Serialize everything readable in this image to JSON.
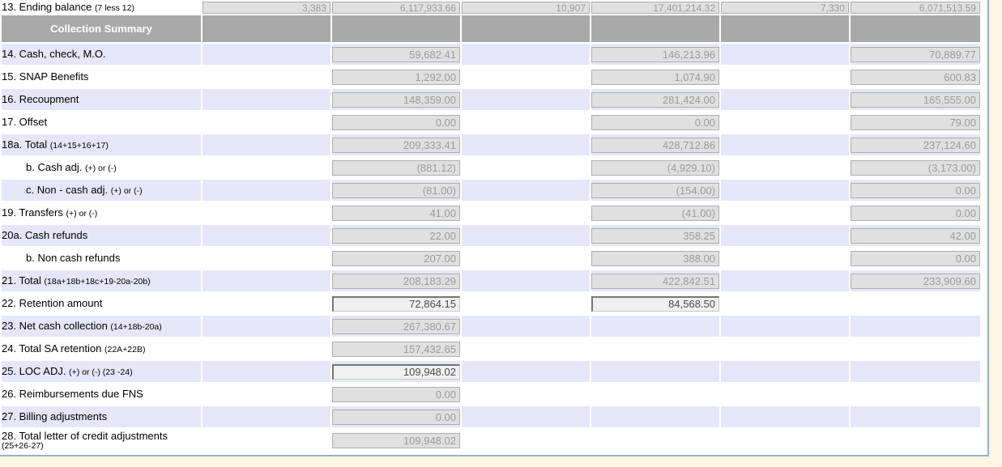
{
  "colors": {
    "page_background": "#fdf6e3",
    "panel_background": "#ffffff",
    "panel_border": "#8fb3cc",
    "row_highlight": "#e6e6fa",
    "header_background": "#a9a9a9",
    "header_text": "#ffffff",
    "readonly_field_background": "#e0e0e0",
    "readonly_field_text": "#9b9b9b",
    "editable_field_background": "#f0f0f0",
    "editable_field_text": "#4d4d4d"
  },
  "table": {
    "section_header": "Collection Summary",
    "top_row": {
      "id": "13",
      "label": "13. Ending balance",
      "note": "(7 less 12)",
      "cells": [
        {
          "v": "3,383",
          "editable": false
        },
        {
          "v": "6,117,933.66",
          "editable": false
        },
        {
          "v": "10,907",
          "editable": false
        },
        {
          "v": "17,401,214.32",
          "editable": false
        },
        {
          "v": "7,330",
          "editable": false
        },
        {
          "v": "6,071,513.59",
          "editable": false
        }
      ]
    },
    "rows": [
      {
        "id": "14",
        "label": "14. Cash, check, M.O.",
        "note": "",
        "indent": false,
        "shade": "alt",
        "cells": [
          null,
          {
            "v": "59,682.41",
            "editable": false
          },
          null,
          {
            "v": "146,213.96",
            "editable": false
          },
          null,
          {
            "v": "70,889.77",
            "editable": false
          }
        ]
      },
      {
        "id": "15",
        "label": "15. SNAP Benefits",
        "note": "",
        "indent": false,
        "shade": "plain",
        "cells": [
          null,
          {
            "v": "1,292.00",
            "editable": false
          },
          null,
          {
            "v": "1,074.90",
            "editable": false
          },
          null,
          {
            "v": "600.83",
            "editable": false
          }
        ]
      },
      {
        "id": "16",
        "label": "16. Recoupment",
        "note": "",
        "indent": false,
        "shade": "alt",
        "cells": [
          null,
          {
            "v": "148,359.00",
            "editable": false
          },
          null,
          {
            "v": "281,424.00",
            "editable": false
          },
          null,
          {
            "v": "165,555.00",
            "editable": false
          }
        ]
      },
      {
        "id": "17",
        "label": "17. Offset",
        "note": "",
        "indent": false,
        "shade": "plain",
        "cells": [
          null,
          {
            "v": "0.00",
            "editable": false
          },
          null,
          {
            "v": "0.00",
            "editable": false
          },
          null,
          {
            "v": "79.00",
            "editable": false
          }
        ]
      },
      {
        "id": "18a",
        "label": "18a. Total",
        "note": "(14+15+16+17)",
        "indent": false,
        "shade": "alt",
        "cells": [
          null,
          {
            "v": "209,333.41",
            "editable": false
          },
          null,
          {
            "v": "428,712.86",
            "editable": false
          },
          null,
          {
            "v": "237,124.60",
            "editable": false
          }
        ]
      },
      {
        "id": "18b",
        "label": "b. Cash adj.",
        "note": "(+) or (-)",
        "indent": true,
        "shade": "plain",
        "cells": [
          null,
          {
            "v": "(881.12)",
            "editable": false
          },
          null,
          {
            "v": "(4,929.10)",
            "editable": false
          },
          null,
          {
            "v": "(3,173.00)",
            "editable": false
          }
        ]
      },
      {
        "id": "18c",
        "label": "c. Non - cash adj.",
        "note": "(+) or (-)",
        "indent": true,
        "shade": "alt",
        "cells": [
          null,
          {
            "v": "(81.00)",
            "editable": false
          },
          null,
          {
            "v": "(154.00)",
            "editable": false
          },
          null,
          {
            "v": "0.00",
            "editable": false
          }
        ]
      },
      {
        "id": "19",
        "label": "19. Transfers",
        "note": "(+) or (-)",
        "indent": false,
        "shade": "plain",
        "cells": [
          null,
          {
            "v": "41.00",
            "editable": false
          },
          null,
          {
            "v": "(41.00)",
            "editable": false
          },
          null,
          {
            "v": "0.00",
            "editable": false
          }
        ]
      },
      {
        "id": "20a",
        "label": "20a. Cash refunds",
        "note": "",
        "indent": false,
        "shade": "alt",
        "cells": [
          null,
          {
            "v": "22.00",
            "editable": false
          },
          null,
          {
            "v": "358.25",
            "editable": false
          },
          null,
          {
            "v": "42.00",
            "editable": false
          }
        ]
      },
      {
        "id": "20b",
        "label": "b. Non cash refunds",
        "note": "",
        "indent": true,
        "shade": "plain",
        "cells": [
          null,
          {
            "v": "207.00",
            "editable": false
          },
          null,
          {
            "v": "388.00",
            "editable": false
          },
          null,
          {
            "v": "0.00",
            "editable": false
          }
        ]
      },
      {
        "id": "21",
        "label": "21. Total",
        "note": "(18a+18b+18c+19-20a-20b)",
        "indent": false,
        "shade": "alt",
        "cells": [
          null,
          {
            "v": "208,183.29",
            "editable": false
          },
          null,
          {
            "v": "422,842.51",
            "editable": false
          },
          null,
          {
            "v": "233,909.60",
            "editable": false
          }
        ]
      },
      {
        "id": "22",
        "label": "22. Retention amount",
        "note": "",
        "indent": false,
        "shade": "plain",
        "cells": [
          null,
          {
            "v": "72,864.15",
            "editable": true
          },
          null,
          {
            "v": "84,568.50",
            "editable": true
          },
          null,
          null
        ]
      },
      {
        "id": "23",
        "label": "23. Net cash collection",
        "note": "(14+18b-20a)",
        "indent": false,
        "shade": "alt",
        "cells": [
          null,
          {
            "v": "267,380.67",
            "editable": false
          },
          null,
          null,
          null,
          null
        ]
      },
      {
        "id": "24",
        "label": "24. Total SA retention",
        "note": "(22A+22B)",
        "indent": false,
        "shade": "plain",
        "cells": [
          null,
          {
            "v": "157,432.65",
            "editable": false
          },
          null,
          null,
          null,
          null
        ]
      },
      {
        "id": "25",
        "label": "25. LOC ADJ.",
        "note": "(+) or (-) (23 -24)",
        "indent": false,
        "shade": "alt",
        "cells": [
          null,
          {
            "v": "109,948.02",
            "editable": true
          },
          null,
          null,
          null,
          null
        ]
      },
      {
        "id": "26",
        "label": "26. Reimbursements due FNS",
        "note": "",
        "indent": false,
        "shade": "plain",
        "cells": [
          null,
          {
            "v": "0.00",
            "editable": false
          },
          null,
          null,
          null,
          null
        ]
      },
      {
        "id": "27",
        "label": "27. Billing adjustments",
        "note": "",
        "indent": false,
        "shade": "alt",
        "cells": [
          null,
          {
            "v": "0.00",
            "editable": false
          },
          null,
          null,
          null,
          null
        ]
      },
      {
        "id": "28",
        "label": "28. Total letter of credit adjustments",
        "note": "",
        "note_line2": "(25+26-27)",
        "indent": false,
        "shade": "plain",
        "cells": [
          null,
          {
            "v": "109,948.02",
            "editable": false
          },
          null,
          null,
          null,
          null
        ]
      }
    ]
  }
}
